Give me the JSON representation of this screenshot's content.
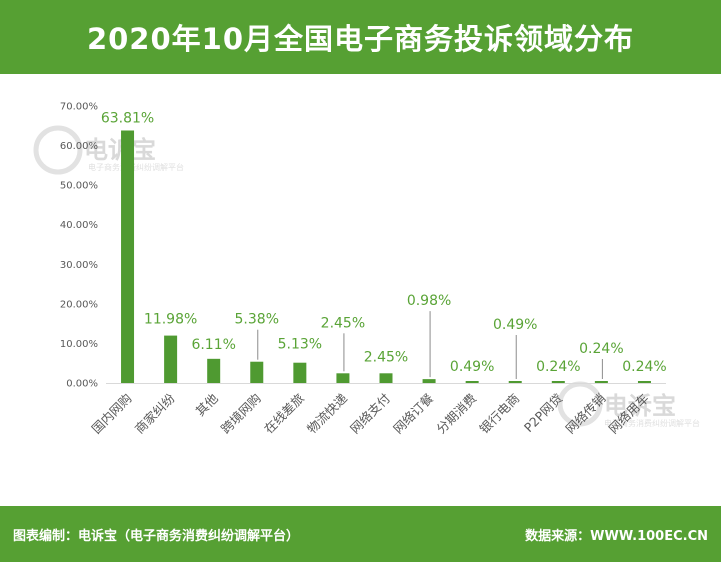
{
  "header": {
    "title": "2020年10月全国电子商务投诉领域分布"
  },
  "footer": {
    "left_text": "图表编制：电诉宝（电子商务消费纠纷调解平台）",
    "right_text": "数据来源：WWW.100EC.CN"
  },
  "watermark": {
    "logo": "电诉宝",
    "subtitle": "电子商务消费纠纷调解平台"
  },
  "colors": {
    "brand": "#56a033",
    "bar": "#4f9a31",
    "label": "#5aa437",
    "axis_text": "#595959",
    "gridline": "#d9d9d9"
  },
  "chart_data": {
    "type": "bar",
    "title": "2020年10月全国电子商务投诉领域分布",
    "categories": [
      "国内网购",
      "商家纠纷",
      "其他",
      "跨境网购",
      "在线差旅",
      "物流快递",
      "网络支付",
      "网络订餐",
      "分期消费",
      "银行电商",
      "P2P网贷",
      "网络传销",
      "网络用车"
    ],
    "values": [
      63.81,
      11.98,
      6.11,
      5.38,
      5.13,
      2.45,
      2.45,
      0.98,
      0.49,
      0.49,
      0.24,
      0.24,
      0.24
    ],
    "data_labels": [
      "63.81%",
      "11.98%",
      "6.11%",
      "5.38%",
      "5.13%",
      "2.45%",
      "2.45%",
      "0.98%",
      "0.49%",
      "0.49%",
      "0.24%",
      "0.24%",
      "0.24%"
    ],
    "y_ticks": [
      "0.00%",
      "10.00%",
      "20.00%",
      "30.00%",
      "40.00%",
      "50.00%",
      "60.00%",
      "70.00%"
    ],
    "ylim": [
      0,
      70
    ],
    "xlabel": "",
    "ylabel": "",
    "grid": false,
    "legend": "none"
  }
}
